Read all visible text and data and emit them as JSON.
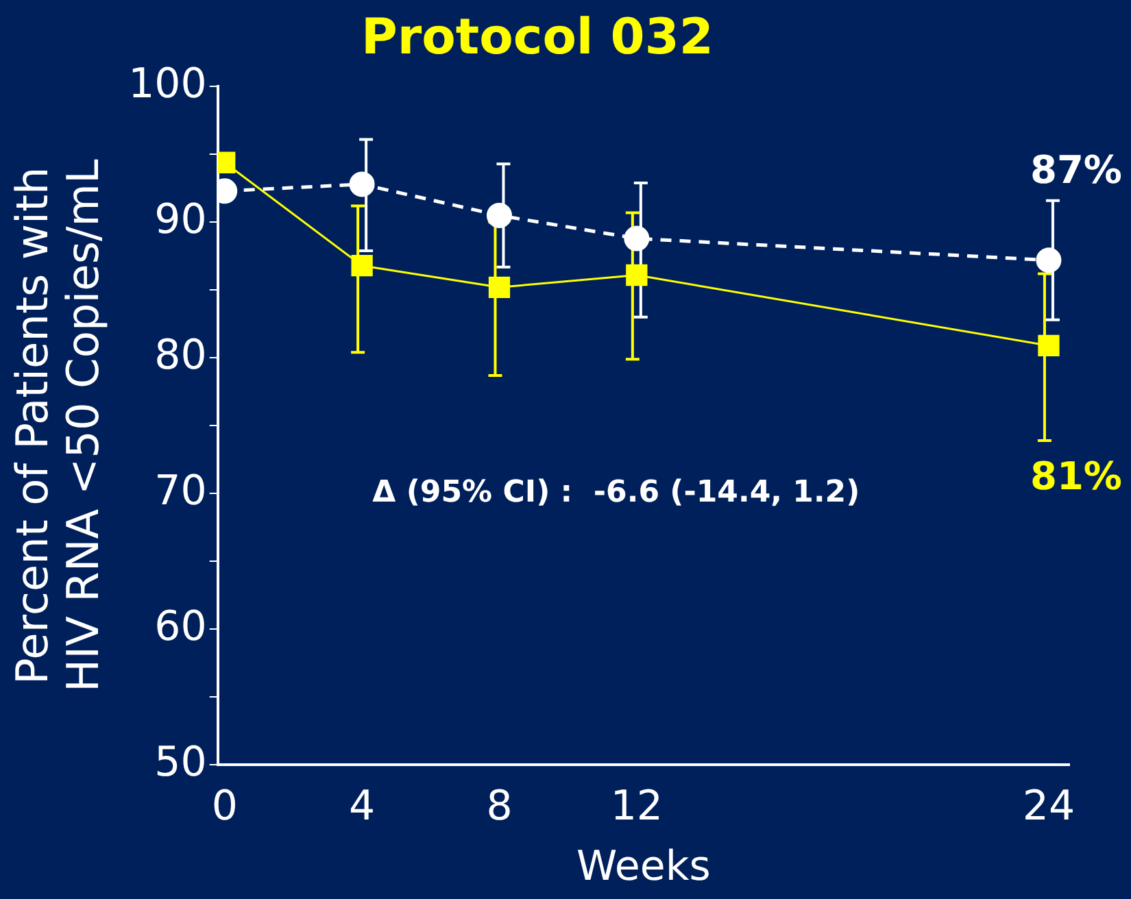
{
  "chart_data": {
    "type": "line",
    "title": "Protocol 032",
    "xlabel": "Weeks",
    "ylabel": "Percent of Patients with\nHIV RNA <50 Copies/mL",
    "x": [
      0,
      4,
      8,
      12,
      24
    ],
    "series": [
      {
        "color": "#ffffff",
        "marker": "circle",
        "line_style": "dashed",
        "values": [
          92.3,
          92.8,
          90.5,
          88.8,
          87.2
        ],
        "errors": [
          null,
          [
            87.9,
            96.1
          ],
          [
            86.7,
            94.3
          ],
          [
            83.0,
            92.9
          ],
          [
            82.8,
            91.6
          ]
        ],
        "value_labels": [
          null,
          null,
          null,
          null,
          "87%"
        ]
      },
      {
        "color": "#ffff00",
        "marker": "square",
        "line_style": "solid",
        "values": [
          94.4,
          86.8,
          85.2,
          86.1,
          80.9
        ],
        "errors": [
          null,
          [
            80.4,
            91.2
          ],
          [
            78.7,
            90.0
          ],
          [
            79.9,
            90.7
          ],
          [
            73.9,
            86.2
          ]
        ],
        "value_labels": [
          null,
          null,
          null,
          null,
          "81%"
        ]
      }
    ],
    "xlim": [
      -0.2,
      24.6
    ],
    "xticks": [
      0,
      4,
      8,
      12,
      24
    ],
    "ylim": [
      50,
      100
    ],
    "yticks": [
      50,
      {
        "value": 55,
        "label": null
      },
      60,
      {
        "value": 65,
        "label": null
      },
      70,
      {
        "value": 75,
        "label": null
      },
      80,
      {
        "value": 85,
        "label": null
      },
      90,
      {
        "value": 95,
        "label": null
      },
      100
    ],
    "annotations": [
      "Δ (95% CI) :  -6.6 (-14.4, 1.2)"
    ],
    "grid": false,
    "legend": false
  }
}
